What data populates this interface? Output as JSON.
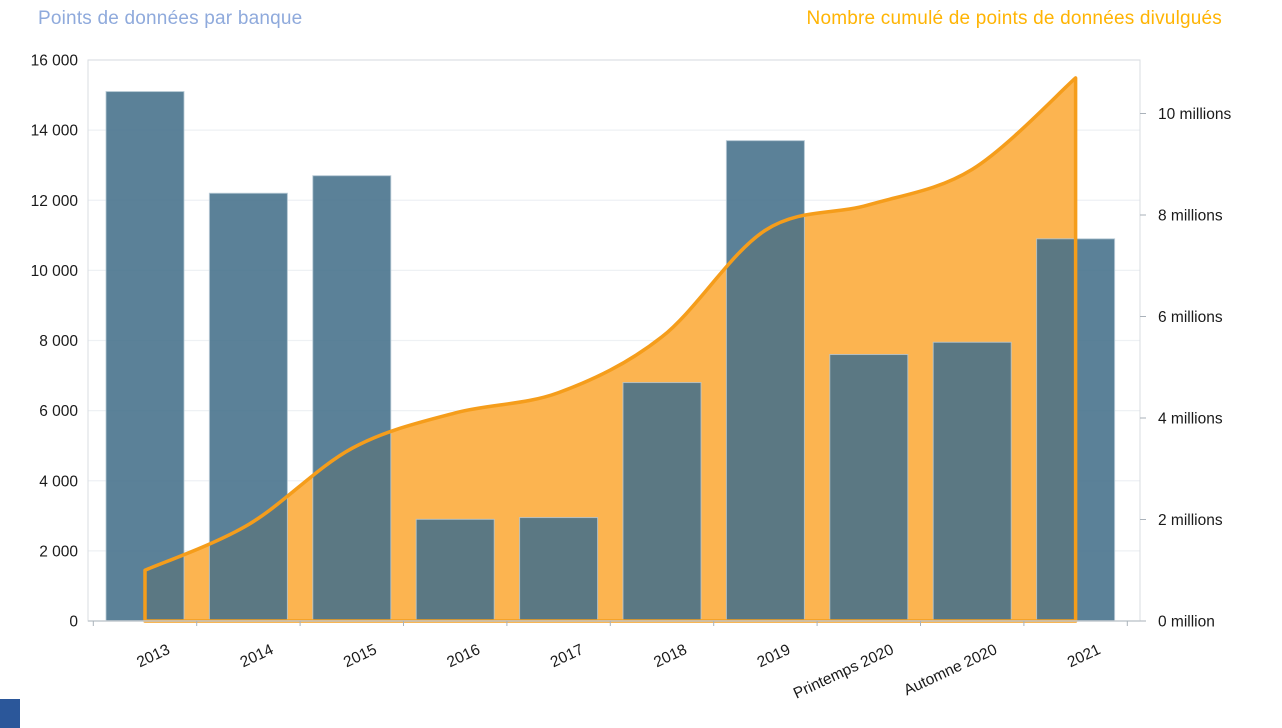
{
  "header": {
    "left_title": {
      "text": "Points de données par banque",
      "color": "#8FAADC"
    },
    "right_title": {
      "text": "Nombre cumulé de points de données divulgués",
      "color": "#FFB403"
    }
  },
  "chart_data": {
    "type": "combo-bar-area",
    "categories": [
      "2013",
      "2014",
      "2015",
      "2016",
      "2017",
      "2018",
      "2019",
      "Printemps 2020",
      "Automne 2020",
      "2021"
    ],
    "series": [
      {
        "name": "Points de données par banque",
        "type": "bar",
        "axis": "left",
        "color": "#44708A",
        "bar_opacity": 0.88,
        "bar_border": "#B7C9D6",
        "values": [
          15100,
          12200,
          12700,
          2900,
          2950,
          6800,
          13700,
          7600,
          7950,
          10900
        ]
      },
      {
        "name": "Nombre cumulé de points de données divulgués",
        "type": "area-line-smooth",
        "axis": "right",
        "fill": "#FCB450",
        "line_color": "#F59D1B",
        "line_width": 3.5,
        "values_millions": [
          1.0,
          1.9,
          3.4,
          4.1,
          4.5,
          5.6,
          7.7,
          8.2,
          8.9,
          10.7
        ]
      }
    ],
    "left_axis": {
      "min": 0,
      "max": 16000,
      "tick_interval": 2000,
      "tick_labels": [
        "0",
        "2 000",
        "4 000",
        "6 000",
        "8 000",
        "10 000",
        "12 000",
        "14 000",
        "16 000"
      ]
    },
    "right_axis": {
      "min": 0,
      "tick_interval_millions": 2,
      "tick_labels": [
        "0 million",
        "2 millions",
        "4 millions",
        "6 millions",
        "8 millions",
        "10 millions"
      ]
    },
    "x_axis": {
      "label_rotation_deg": -25
    },
    "grid": "horizontal lines for left axis only",
    "legend": "none — colored chart titles act as series labels",
    "styles": {
      "gridline": "#EEF1F4",
      "plot_border": "#D8DDE2",
      "baseline": "#C4CACF",
      "tick": "#AAB2BA",
      "axis_text": "#1A1A1A"
    }
  },
  "misc": {
    "corner_square_color": "#2B579A"
  }
}
